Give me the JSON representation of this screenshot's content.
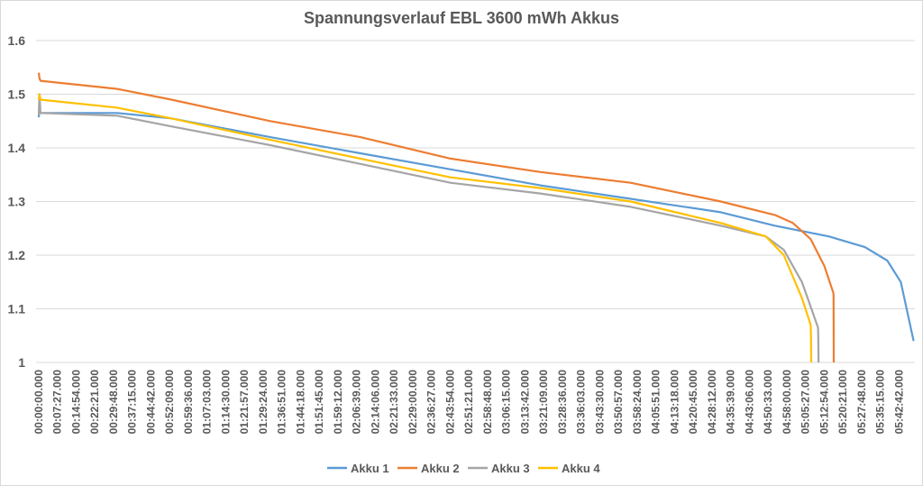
{
  "chart_data": {
    "type": "line",
    "title": "Spannungsverlauf EBL 3600 mWh Akkus",
    "xlabel": "",
    "ylabel": "",
    "x_unit": "minutes",
    "xlim": [
      0,
      349
    ],
    "ylim": [
      1.0,
      1.6
    ],
    "yticks": [
      "1",
      "1.1",
      "1.2",
      "1.3",
      "1.4",
      "1.5",
      "1.6"
    ],
    "ytick_values": [
      1.0,
      1.1,
      1.2,
      1.3,
      1.4,
      1.5,
      1.6
    ],
    "grid": true,
    "legend_position": "bottom",
    "xtick_labels": [
      "00:00:00.000",
      "00:07:27.000",
      "00:14:54.000",
      "00:22:21.000",
      "00:29:48.000",
      "00:37:15.000",
      "00:44:42.000",
      "00:52:09.000",
      "00:59:36.000",
      "01:07:03.000",
      "01:14:30.000",
      "01:21:57.000",
      "01:29:24.000",
      "01:36:51.000",
      "01:44:18.000",
      "01:51:45.000",
      "01:59:12.000",
      "02:06:39.000",
      "02:14:06.000",
      "02:21:33.000",
      "02:29:00.000",
      "02:36:27.000",
      "02:43:54.000",
      "02:51:21.000",
      "02:58:48.000",
      "03:06:15.000",
      "03:13:42.000",
      "03:21:09.000",
      "03:28:36.000",
      "03:36:03.000",
      "03:43:30.000",
      "03:50:57.000",
      "03:58:24.000",
      "04:05:51.000",
      "04:13:18.000",
      "04:20:45.000",
      "04:28:12.000",
      "04:35:39.000",
      "04:43:06.000",
      "04:50:33.000",
      "04:58:00.000",
      "05:05:27.000",
      "05:12:54.000",
      "05:20:21.000",
      "05:27:48.000",
      "05:35:15.000",
      "05:42:42.000"
    ],
    "xtick_step_minutes": 7.45,
    "series": [
      {
        "name": "Akku 1",
        "color": "#5B9BD5",
        "x": [
          0,
          0.3,
          0.7,
          31.2,
          52.8,
          92.2,
          128.1,
          164.0,
          199.9,
          235.8,
          271.7,
          293.2,
          314.7,
          329.1,
          338.0,
          343.4,
          348.5
        ],
        "y": [
          1.457,
          1.47,
          1.465,
          1.465,
          1.455,
          1.42,
          1.39,
          1.36,
          1.33,
          1.305,
          1.28,
          1.255,
          1.235,
          1.215,
          1.19,
          1.15,
          1.04
        ]
      },
      {
        "name": "Akku 2",
        "color": "#ED7D31",
        "x": [
          0,
          0.3,
          0.7,
          31.2,
          52.8,
          92.2,
          128.1,
          164.0,
          199.9,
          235.8,
          271.7,
          293.2,
          300.4,
          307.5,
          312.9,
          316.5,
          316.6,
          316.7
        ],
        "y": [
          1.54,
          1.53,
          1.525,
          1.51,
          1.49,
          1.45,
          1.42,
          1.38,
          1.355,
          1.335,
          1.3,
          1.275,
          1.26,
          1.23,
          1.18,
          1.13,
          1.125,
          1.0
        ]
      },
      {
        "name": "Akku 3",
        "color": "#A5A5A5",
        "x": [
          0,
          0.3,
          0.7,
          31.2,
          52.8,
          92.2,
          128.1,
          164.0,
          199.9,
          235.8,
          271.7,
          289.6,
          296.8,
          304.0,
          309.3,
          310.4,
          310.5,
          310.6
        ],
        "y": [
          1.46,
          1.5,
          1.465,
          1.46,
          1.44,
          1.405,
          1.37,
          1.335,
          1.315,
          1.29,
          1.255,
          1.235,
          1.21,
          1.15,
          1.08,
          1.065,
          1.05,
          1.0
        ]
      },
      {
        "name": "Akku 4",
        "color": "#FFC000",
        "x": [
          0,
          0.3,
          0.7,
          31.2,
          52.8,
          92.2,
          128.1,
          164.0,
          199.9,
          235.8,
          271.7,
          289.6,
          296.8,
          304.0,
          307.5,
          307.6,
          307.7
        ],
        "y": [
          1.49,
          1.5,
          1.49,
          1.475,
          1.455,
          1.415,
          1.38,
          1.345,
          1.325,
          1.3,
          1.26,
          1.235,
          1.2,
          1.12,
          1.07,
          1.05,
          1.0
        ]
      }
    ]
  }
}
